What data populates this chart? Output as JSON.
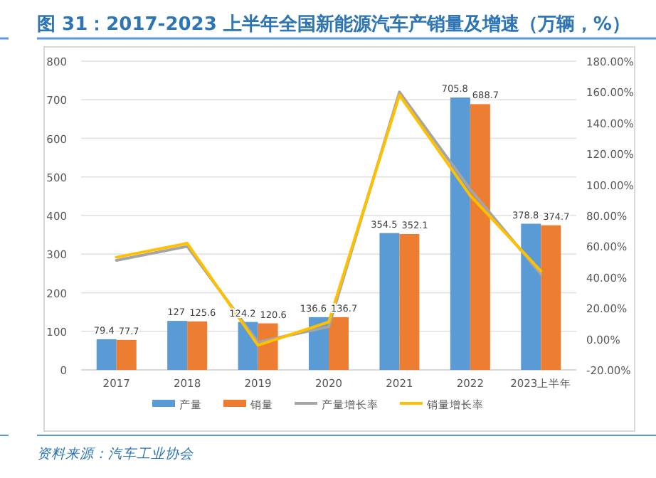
{
  "chart_data": {
    "type": "bar",
    "title": "图 31：2017-2023 上半年全国新能源汽车产销量及增速（万辆，%）",
    "categories": [
      "2017",
      "2018",
      "2019",
      "2020",
      "2021",
      "2022",
      "2023上半年"
    ],
    "series": [
      {
        "name": "产量",
        "color": "#5b9bd5",
        "values": [
          79.4,
          127,
          124.2,
          136.6,
          354.5,
          705.8,
          378.8
        ],
        "value_labels": [
          "79.4",
          "127",
          "124.2",
          "136.6",
          "354.5",
          "705.8",
          "378.8"
        ]
      },
      {
        "name": "销量",
        "color": "#ed7d31",
        "values": [
          77.7,
          125.6,
          120.6,
          136.7,
          352.1,
          688.7,
          374.7
        ],
        "value_labels": [
          "77.7",
          "125.6",
          "120.6",
          "136.7",
          "352.1",
          "688.7",
          "374.7"
        ]
      },
      {
        "name": "产量增长率",
        "type": "line",
        "axis": "y2",
        "color": "#a5a5a5",
        "values": [
          51,
          60,
          -2,
          8,
          160,
          97,
          42
        ]
      },
      {
        "name": "销量增长率",
        "type": "line",
        "axis": "y2",
        "color": "#ffc000",
        "values": [
          53,
          62,
          -4,
          11,
          158,
          93,
          44
        ]
      }
    ],
    "ylim": [
      0,
      800
    ],
    "yticks": [
      0,
      100,
      200,
      300,
      400,
      500,
      600,
      700,
      800
    ],
    "y2lim": [
      -20,
      180
    ],
    "y2ticks": [
      {
        "value": -20,
        "label": "-20.00%"
      },
      {
        "value": 0,
        "label": "0.00%"
      },
      {
        "value": 20,
        "label": "20.00%"
      },
      {
        "value": 40,
        "label": "40.00%"
      },
      {
        "value": 60,
        "label": "60.00%"
      },
      {
        "value": 80,
        "label": "80.00%"
      },
      {
        "value": 100,
        "label": "100.00%"
      },
      {
        "value": 120,
        "label": "120.00%"
      },
      {
        "value": 140,
        "label": "140.00%"
      },
      {
        "value": 160,
        "label": "160.00%"
      },
      {
        "value": 180,
        "label": "180.00%"
      }
    ],
    "grid": "y",
    "legend": "bottom",
    "annotations": [
      "资料来源：汽车工业协会"
    ]
  }
}
